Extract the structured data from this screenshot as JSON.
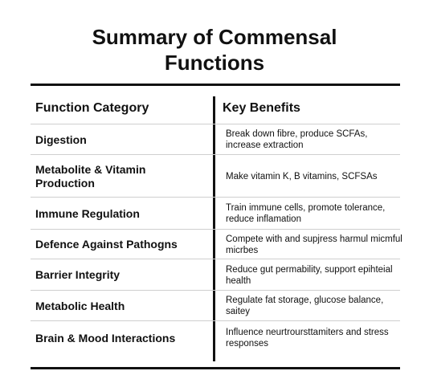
{
  "title_line1": "Summary of Commensal",
  "title_line2": "Functions",
  "headers": {
    "category": "Function Category",
    "benefits": "Key Benefits"
  },
  "rows": [
    {
      "category": "Digestion",
      "benefits": "Break down fibre, produce SCFAs, increase extraction"
    },
    {
      "category": "Metabolite & Vitamin Production",
      "benefits": "Make vitamin K, B vitamins, SCFSAs"
    },
    {
      "category": "Immune Regulation",
      "benefits": "Train immune cells, promote tolerance, reduce inflamation"
    },
    {
      "category": "Defence Against Pathogns",
      "benefits": "Compete with and supjress harmul micmful micrbes"
    },
    {
      "category": "Barrier Integrity",
      "benefits": "Reduce gut permability, support epihteial health"
    },
    {
      "category": "Metabolic Health",
      "benefits": "Regulate fat storage, glucose balance, saitey"
    },
    {
      "category": "Brain & Mood Interactions",
      "benefits": "Influence neurtroursttamiters and stress responses"
    }
  ]
}
